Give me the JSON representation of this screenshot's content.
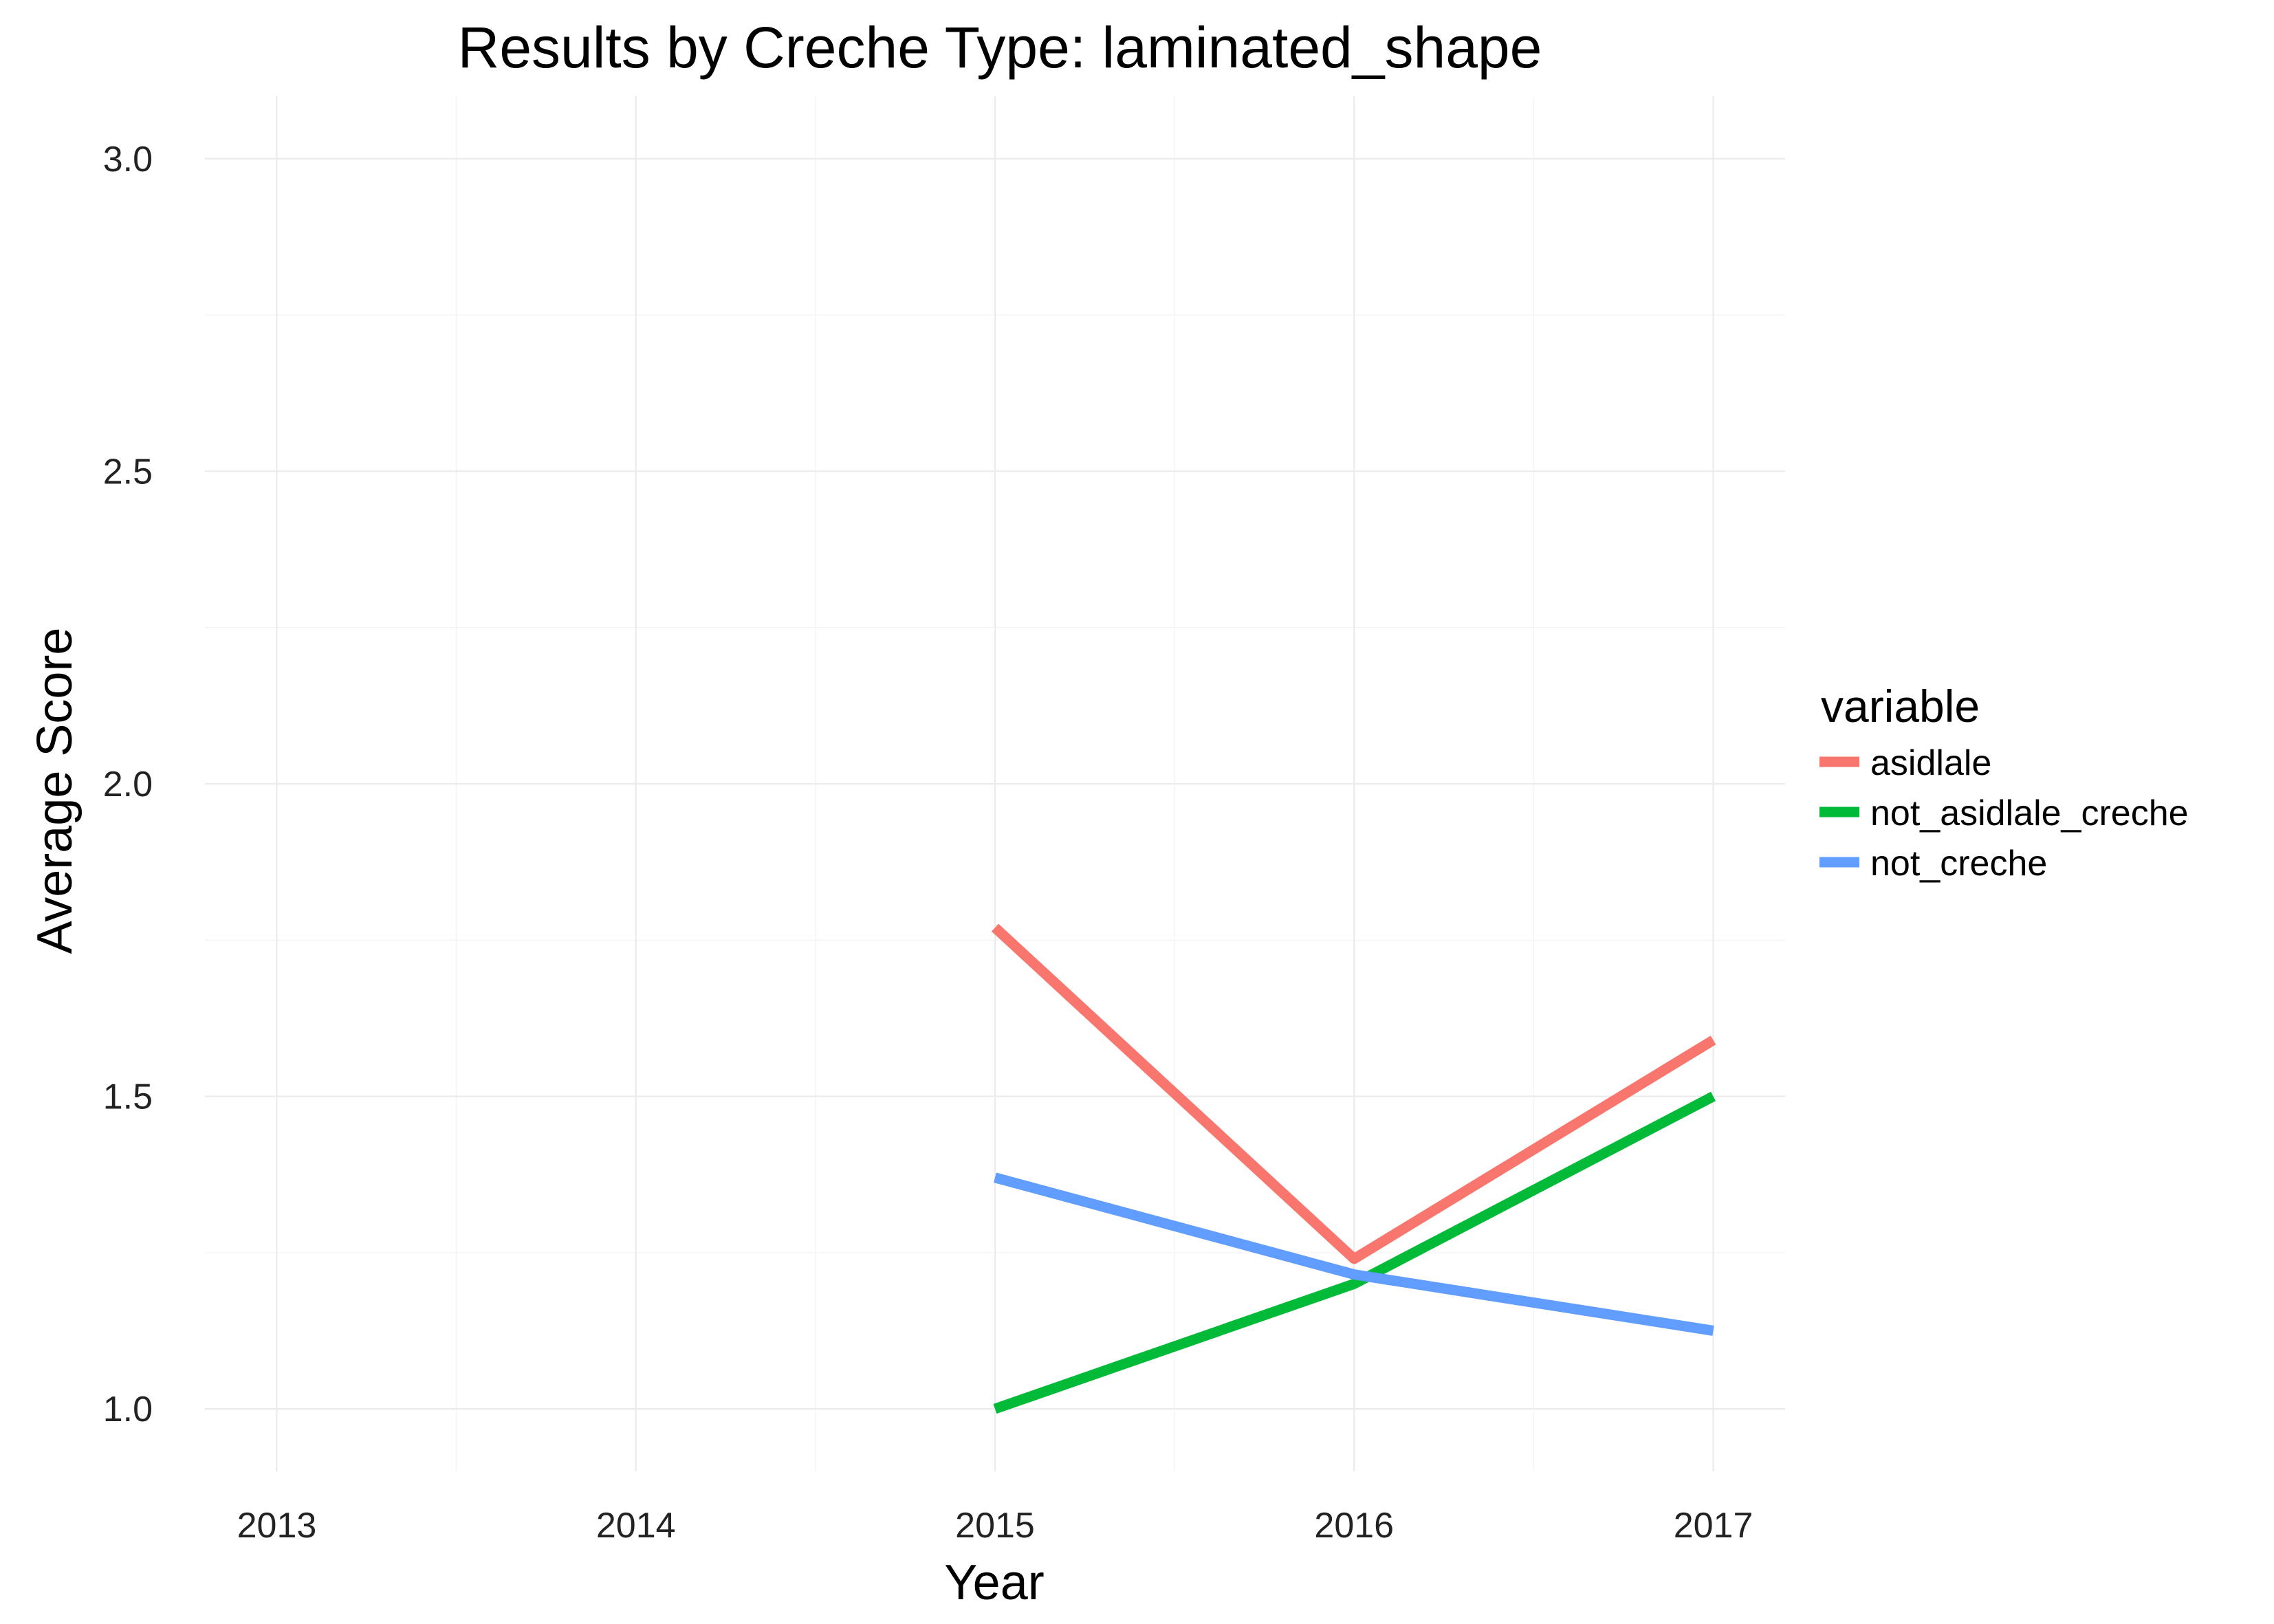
{
  "chart_data": {
    "type": "line",
    "title": "Results by Creche Type: laminated_shape",
    "xlabel": "Year",
    "ylabel": "Average Score",
    "xlim": [
      2012.8,
      2017.2
    ],
    "ylim": [
      0.9,
      3.1
    ],
    "x_ticks": [
      "2013",
      "2014",
      "2015",
      "2016",
      "2017"
    ],
    "y_ticks": [
      "1.0",
      "1.5",
      "2.0",
      "2.5",
      "3.0"
    ],
    "grid": true,
    "legend": {
      "title": "variable",
      "position": "right"
    },
    "x": [
      2015,
      2016,
      2017
    ],
    "series": [
      {
        "name": "asidlale",
        "color": "#F8766D",
        "values": [
          1.77,
          1.24,
          1.59
        ]
      },
      {
        "name": "not_asidlale_creche",
        "color": "#00BA38",
        "values": [
          1.0,
          1.2,
          1.5
        ]
      },
      {
        "name": "not_creche",
        "color": "#619CFF",
        "values": [
          1.37,
          1.215,
          1.125
        ]
      }
    ]
  }
}
